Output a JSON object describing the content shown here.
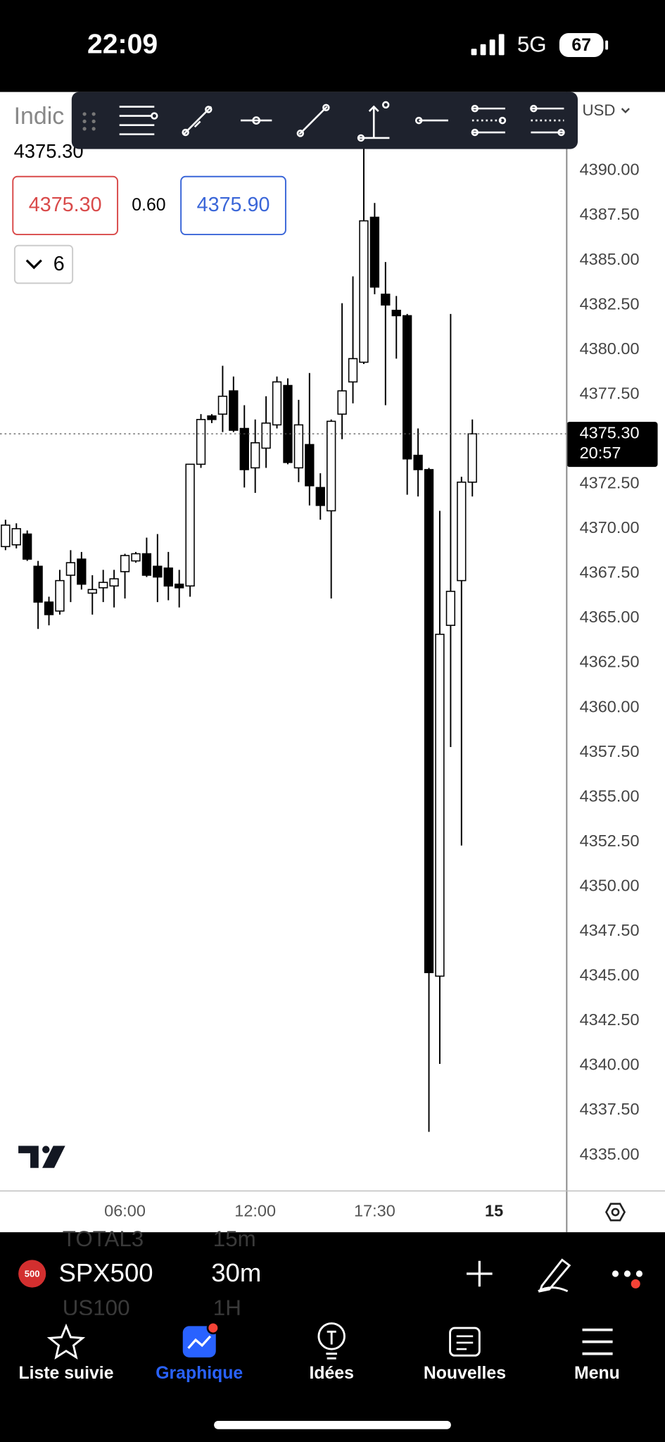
{
  "status_bar": {
    "time": "22:09",
    "network": "5G",
    "battery": "67"
  },
  "header": {
    "title": "Indic",
    "price": "4375.30",
    "bid": "4375.30",
    "spread": "0.60",
    "ask": "4375.90",
    "indicators": "6",
    "currency": "USD"
  },
  "chart_data": {
    "type": "candlestick",
    "categories": [
      null,
      null,
      null,
      null,
      null,
      null,
      null,
      null,
      null,
      null,
      null,
      "06:00",
      null,
      null,
      null,
      null,
      null,
      null,
      null,
      null,
      null,
      null,
      null,
      "12:00",
      null,
      null,
      null,
      null,
      null,
      null,
      null,
      null,
      null,
      null,
      "17:30",
      null,
      null,
      null,
      null,
      null,
      null,
      null,
      null,
      null,
      null,
      "15"
    ],
    "open": [
      4369.0,
      4369.1,
      4369.7,
      4367.9,
      4365.9,
      4365.4,
      4367.4,
      4368.3,
      4366.4,
      4366.7,
      4366.8,
      4367.6,
      4368.2,
      4368.6,
      4367.9,
      4367.8,
      4366.9,
      4366.8,
      4373.6,
      4376.3,
      4376.4,
      4377.7,
      4375.6,
      4373.4,
      4374.5,
      4375.8,
      4378.0,
      4373.4,
      4374.7,
      4372.3,
      4371.0,
      4376.4,
      4378.2,
      4379.3,
      4387.4,
      4383.1,
      4382.2,
      4381.9,
      4374.1,
      4373.3,
      4345.0,
      4364.6,
      4367.1,
      4372.6,
      null,
      null
    ],
    "high": [
      4370.5,
      4370.3,
      4369.9,
      4368.2,
      4366.2,
      4367.7,
      4368.8,
      4368.7,
      4367.4,
      4367.7,
      4367.7,
      4368.6,
      4368.7,
      4369.5,
      4369.7,
      4368.7,
      4367.7,
      4373.6,
      4376.4,
      4376.4,
      4379.1,
      4378.5,
      4376.9,
      4376.1,
      4377.4,
      4378.5,
      4378.4,
      4377.2,
      4378.7,
      4373.1,
      4376.1,
      4382.6,
      4384.1,
      4391.3,
      4388.2,
      4384.9,
      4383.0,
      4382.0,
      4375.6,
      4373.4,
      4371.0,
      4382.0,
      4372.9,
      4376.1,
      null,
      null
    ],
    "low": [
      4368.8,
      4368.9,
      4368.2,
      4364.4,
      4364.6,
      4365.2,
      4365.9,
      4366.6,
      4365.2,
      4365.9,
      4365.6,
      4366.1,
      4368.1,
      4367.3,
      4365.9,
      4366.0,
      4365.6,
      4366.2,
      4373.4,
      4375.9,
      4375.4,
      4375.4,
      4372.3,
      4372.0,
      4373.4,
      4375.6,
      4373.6,
      4372.6,
      4371.3,
      4370.5,
      4366.1,
      4375.0,
      4377.0,
      4379.2,
      4383.1,
      4376.9,
      4379.5,
      4371.9,
      4371.8,
      4336.3,
      4340.1,
      4357.8,
      4352.3,
      4371.8,
      null,
      null
    ],
    "close": [
      4370.2,
      4370.0,
      4368.3,
      4365.9,
      4365.2,
      4367.1,
      4368.1,
      4366.9,
      4366.6,
      4367.0,
      4367.2,
      4368.5,
      4368.6,
      4367.4,
      4367.3,
      4366.8,
      4366.7,
      4373.6,
      4376.1,
      4376.1,
      4377.4,
      4375.5,
      4373.3,
      4374.8,
      4375.9,
      4378.2,
      4373.7,
      4375.8,
      4372.4,
      4371.3,
      4376.0,
      4377.7,
      4379.5,
      4387.2,
      4383.5,
      4382.5,
      4381.9,
      4373.9,
      4373.3,
      4345.2,
      4364.1,
      4366.5,
      4372.6,
      4375.3,
      null,
      null
    ],
    "up_color": "#ffffff",
    "down_color": "#000000",
    "wick_color": "#000000",
    "ylim": [
      4333,
      4394.4
    ],
    "yticks": [
      {
        "value": 4335,
        "label": "4335.00"
      },
      {
        "value": 4337.5,
        "label": "4337.50"
      },
      {
        "value": 4340,
        "label": "4340.00"
      },
      {
        "value": 4342.5,
        "label": "4342.50"
      },
      {
        "value": 4345,
        "label": "4345.00"
      },
      {
        "value": 4347.5,
        "label": "4347.50"
      },
      {
        "value": 4350,
        "label": "4350.00"
      },
      {
        "value": 4352.5,
        "label": "4352.50"
      },
      {
        "value": 4355,
        "label": "4355.00"
      },
      {
        "value": 4357.5,
        "label": "4357.50"
      },
      {
        "value": 4360,
        "label": "4360.00"
      },
      {
        "value": 4362.5,
        "label": "4362.50"
      },
      {
        "value": 4365,
        "label": "4365.00"
      },
      {
        "value": 4367.5,
        "label": "4367.50"
      },
      {
        "value": 4370,
        "label": "4370.00"
      },
      {
        "value": 4372.5,
        "label": "4372.50"
      },
      {
        "value": 4375,
        "label": "4375.00"
      },
      {
        "value": 4377.5,
        "label": "4377.50"
      },
      {
        "value": 4380,
        "label": "4380.00"
      },
      {
        "value": 4382.5,
        "label": "4382.50"
      },
      {
        "value": 4385,
        "label": "4385.00"
      },
      {
        "value": 4387.5,
        "label": "4387.50"
      },
      {
        "value": 4390,
        "label": "4390.00"
      }
    ],
    "current_price": {
      "value": 4375.3,
      "label": "4375.30"
    },
    "countdown": "20:57",
    "grid": false
  },
  "symbol_bar": {
    "badge": "500",
    "symbol": "SPX500",
    "interval": "30m",
    "ghost_symbols": [
      "TOTAL3",
      "US100"
    ],
    "ghost_intervals": [
      "15m",
      "1H"
    ]
  },
  "tab_bar": {
    "tabs": [
      "Liste suivie",
      "Graphique",
      "Idées",
      "Nouvelles",
      "Menu"
    ]
  }
}
